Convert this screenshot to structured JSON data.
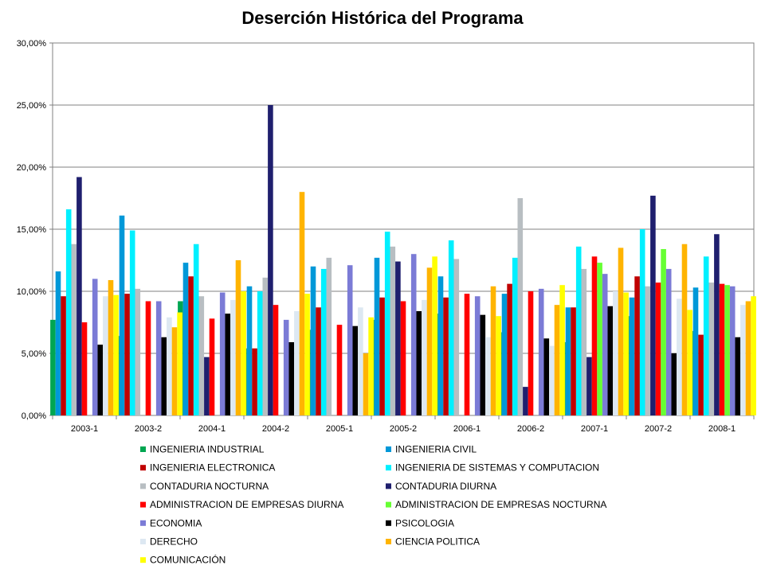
{
  "chart_data": {
    "type": "bar",
    "title": "Deserción Histórica  del Programa",
    "xlabel": "",
    "ylabel": "",
    "ylim": [
      0,
      0.3
    ],
    "y_ticks": [
      "0,00%",
      "5,00%",
      "10,00%",
      "15,00%",
      "20,00%",
      "25,00%",
      "30,00%"
    ],
    "categories": [
      "2003-1",
      "2003-2",
      "2004-1",
      "2004-2",
      "2005-1",
      "2005-2",
      "2006-1",
      "2006-2",
      "2007-1",
      "2007-2",
      "2008-1"
    ],
    "legend_position": "bottom",
    "grid": true,
    "series": [
      {
        "name": "INGENIERIA INDUSTRIAL",
        "color": "#00A651",
        "values": [
          0.077,
          0.064,
          0.092,
          0.054,
          0.069,
          0.077,
          0.082,
          0.067,
          0.059,
          0.08,
          0.068
        ]
      },
      {
        "name": "INGENIERIA CIVIL",
        "color": "#0098D8",
        "values": [
          0.116,
          0.161,
          0.123,
          0.104,
          0.12,
          0.127,
          0.112,
          0.098,
          0.087,
          0.095,
          0.103
        ]
      },
      {
        "name": "INGENIERIA ELECTRONICA",
        "color": "#C00000",
        "values": [
          0.096,
          0.098,
          0.112,
          0.054,
          0.087,
          0.095,
          0.095,
          0.106,
          0.087,
          0.112,
          0.065
        ]
      },
      {
        "name": "INGENIERIA DE SISTEMAS Y COMPUTACION",
        "color": "#00F0FF",
        "values": [
          0.166,
          0.149,
          0.138,
          0.1,
          0.118,
          0.148,
          0.141,
          0.127,
          0.136,
          0.15,
          0.128
        ]
      },
      {
        "name": "CONTADURIA NOCTURNA",
        "color": "#B8BEC2",
        "values": [
          0.138,
          0.102,
          0.096,
          0.111,
          0.127,
          0.136,
          0.126,
          0.175,
          0.118,
          0.104,
          0.107
        ]
      },
      {
        "name": "CONTADURIA DIURNA",
        "color": "#1F1F6E",
        "values": [
          0.192,
          null,
          0.047,
          0.25,
          null,
          0.124,
          null,
          0.023,
          0.047,
          0.177,
          0.146
        ]
      },
      {
        "name": "ADMINISTRACION DE EMPRESAS DIURNA",
        "color": "#FF0000",
        "values": [
          0.075,
          0.092,
          0.078,
          0.089,
          0.073,
          0.092,
          0.098,
          0.1,
          0.128,
          0.107,
          0.106
        ]
      },
      {
        "name": "ADMINISTRACION DE EMPRESAS NOCTURNA",
        "color": "#66FF33",
        "values": [
          null,
          null,
          null,
          null,
          null,
          null,
          null,
          null,
          0.123,
          0.134,
          0.105
        ]
      },
      {
        "name": "ECONOMIA",
        "color": "#7B7BD6",
        "values": [
          0.11,
          0.092,
          0.099,
          0.077,
          0.121,
          0.13,
          0.096,
          0.102,
          0.114,
          0.118,
          0.104
        ]
      },
      {
        "name": "PSICOLOGIA",
        "color": "#000000",
        "values": [
          0.057,
          0.063,
          0.082,
          0.059,
          0.072,
          0.084,
          0.081,
          0.062,
          0.088,
          0.05,
          0.063
        ]
      },
      {
        "name": "DERECHO",
        "color": "#DDE8F2",
        "values": [
          0.096,
          0.079,
          0.093,
          0.084,
          0.087,
          0.093,
          0.063,
          0.056,
          0.1,
          0.094,
          0.089
        ]
      },
      {
        "name": "CIENCIA POLITICA",
        "color": "#FFB400",
        "values": [
          0.109,
          0.071,
          0.125,
          0.18,
          0.05,
          0.119,
          0.104,
          0.089,
          0.135,
          0.138,
          0.092
        ]
      },
      {
        "name": "COMUNICACIÓN",
        "color": "#FFFF00",
        "values": [
          0.097,
          0.083,
          0.1,
          0.098,
          0.079,
          0.128,
          0.08,
          0.105,
          0.099,
          0.085,
          0.096
        ]
      }
    ]
  }
}
